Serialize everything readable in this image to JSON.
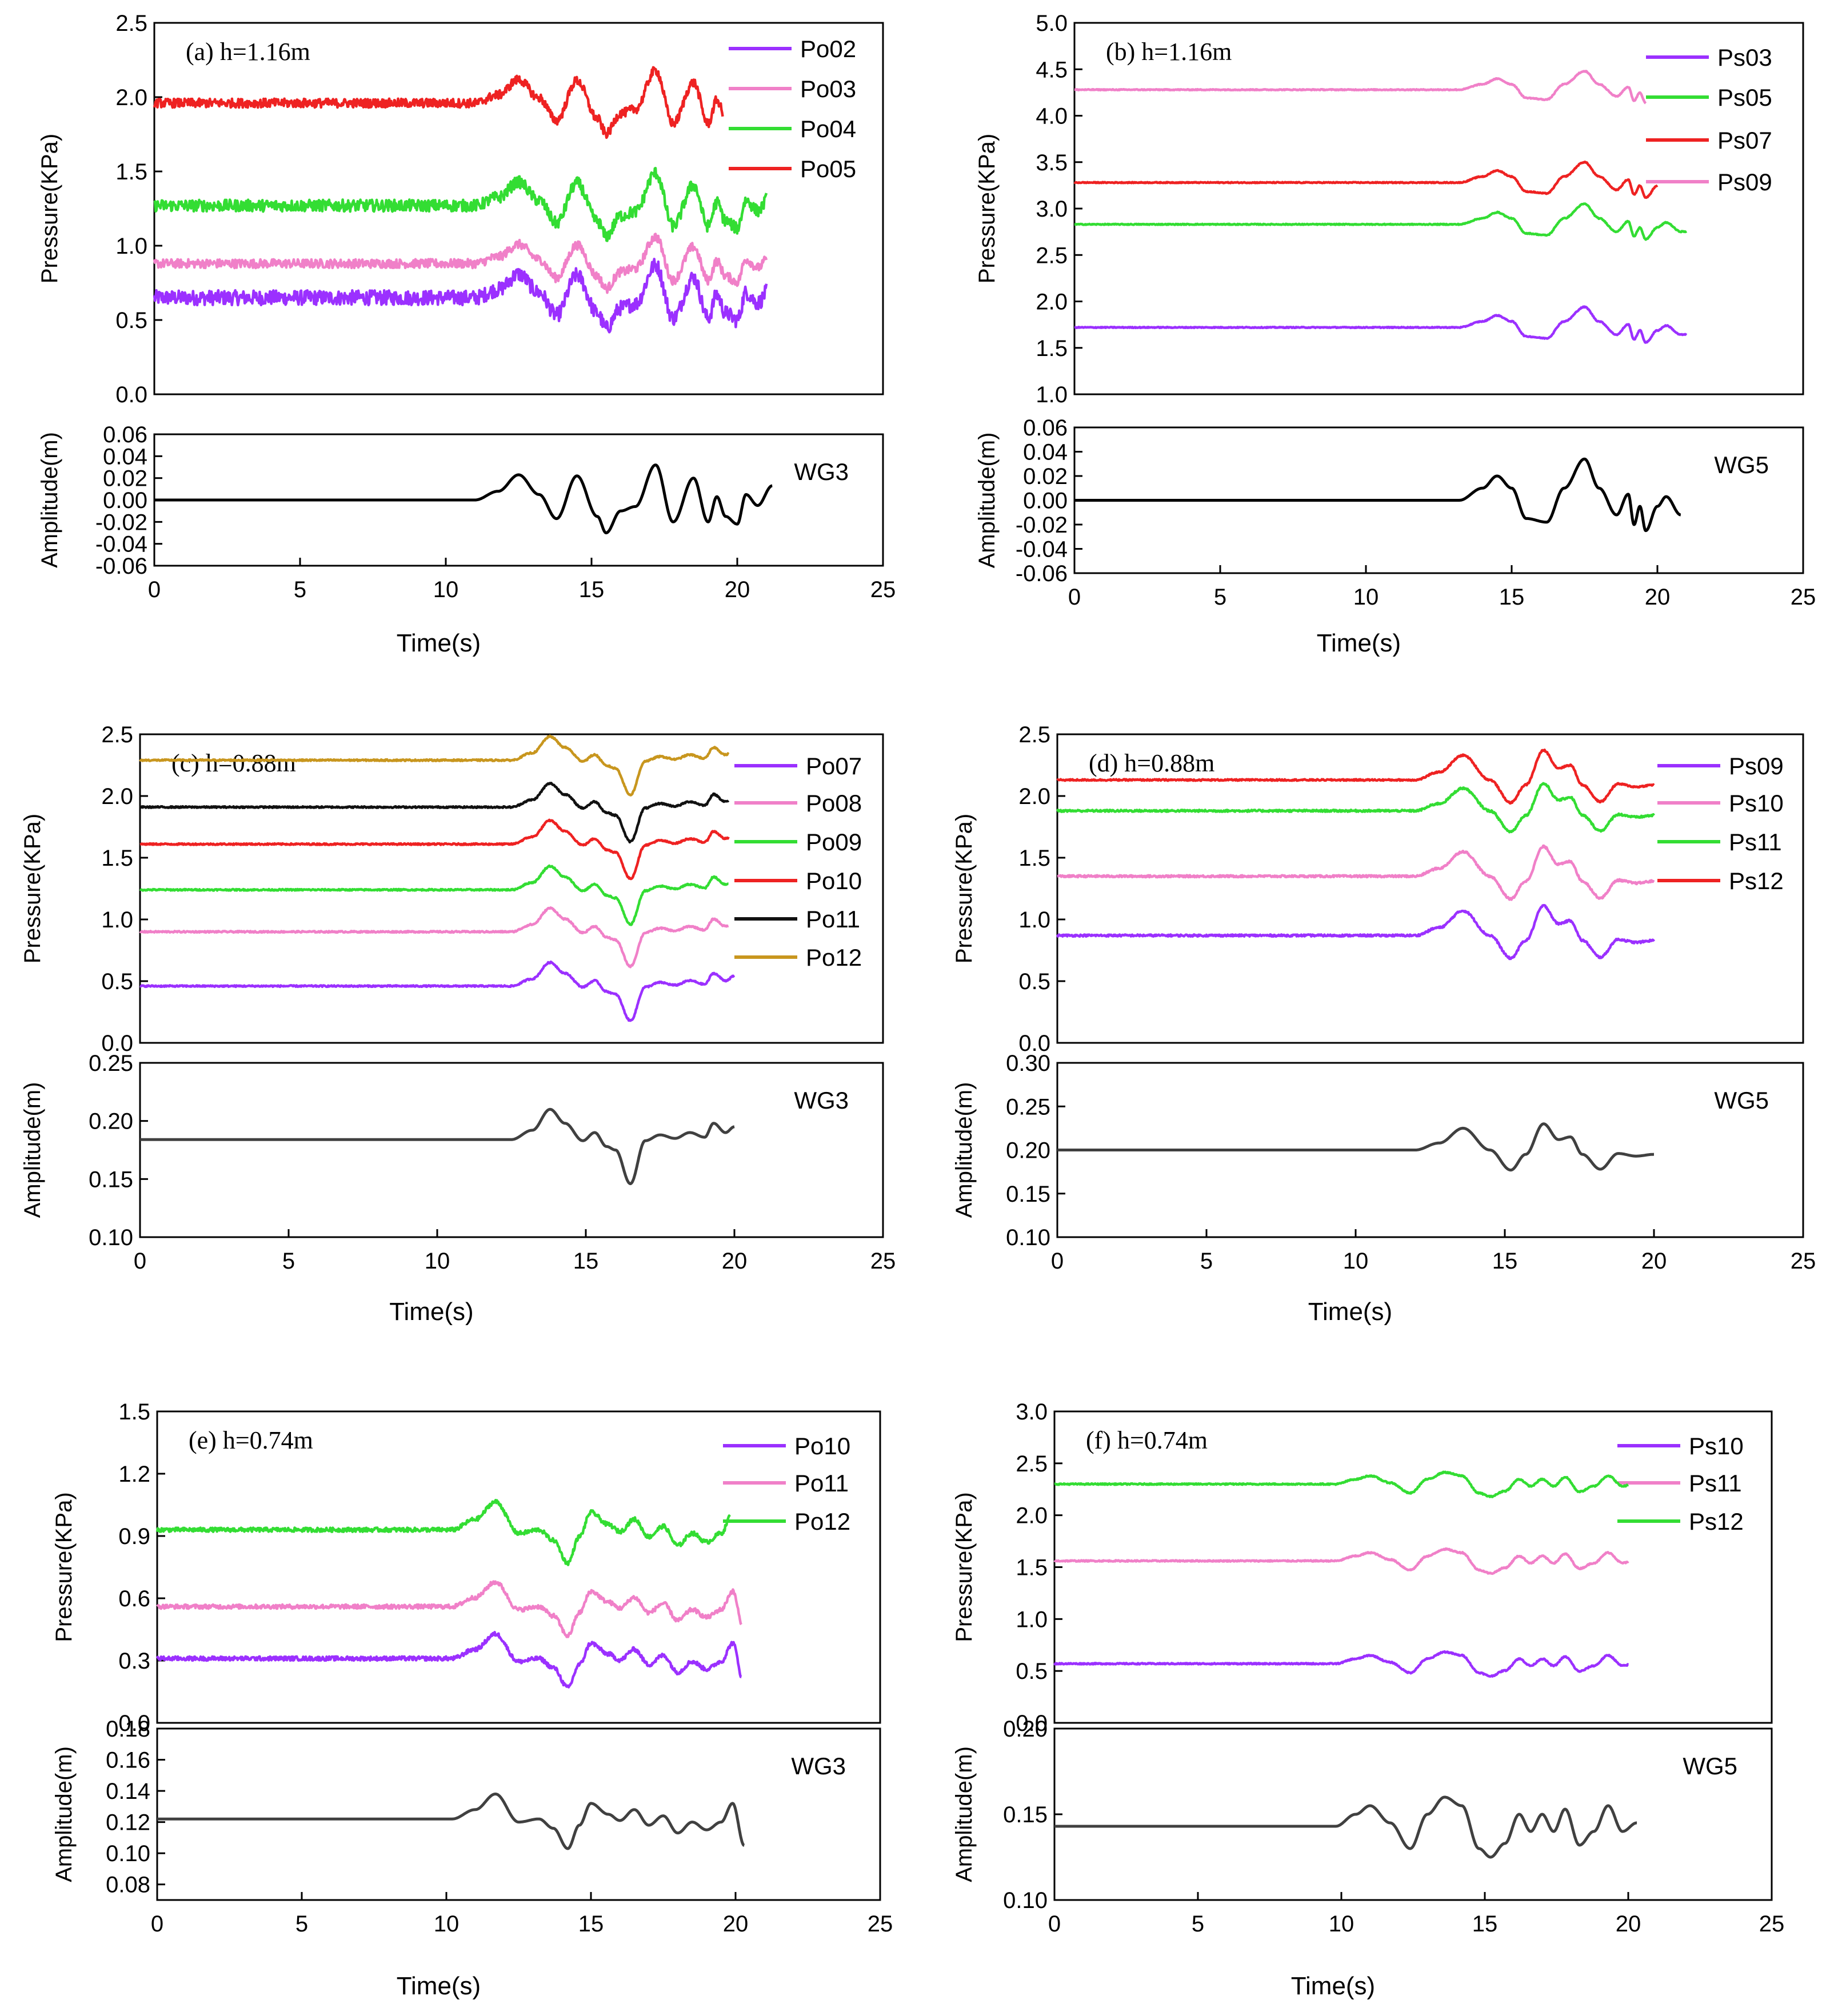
{
  "figure": {
    "time_label": "Time(s)",
    "pressure_label": "Pressure(KPa)",
    "amplitude_label": "Amplitude(m)"
  },
  "chart_data": [
    {
      "id": "a",
      "panel_label": "(a) h=1.16m",
      "type": "line",
      "pressure": {
        "ylim": [
          0,
          2.5
        ],
        "yticks": [
          "0.0",
          "0.5",
          "1.0",
          "1.5",
          "2.0",
          "2.5"
        ],
        "series": [
          {
            "name": "Po02",
            "color": "#9b30ff",
            "base": 0.65,
            "start": 11.5,
            "end": 21.0,
            "amp": 0.22,
            "noise": 0.05
          },
          {
            "name": "Po03",
            "color": "#f080c8",
            "base": 0.88,
            "start": 11.5,
            "end": 21.0,
            "amp": 0.18,
            "noise": 0.03
          },
          {
            "name": "Po04",
            "color": "#33dd33",
            "base": 1.27,
            "start": 11.5,
            "end": 21.0,
            "amp": 0.22,
            "noise": 0.04
          },
          {
            "name": "Po05",
            "color": "#ee2222",
            "base": 1.96,
            "start": 11.5,
            "end": 19.5,
            "amp": 0.22,
            "noise": 0.03
          }
        ]
      },
      "wave": {
        "name": "WG3",
        "color": "#000000",
        "ylim": [
          -0.06,
          0.06
        ],
        "yticks": [
          "-0.06",
          "-0.04",
          "-0.02",
          "0.00",
          "0.02",
          "0.04",
          "0.06"
        ],
        "x": [
          0,
          11.0,
          11.8,
          12.5,
          13.2,
          13.8,
          14.5,
          15.2,
          15.5,
          16.0,
          16.5,
          17.2,
          17.8,
          18.5,
          19.0,
          19.3,
          19.6,
          20.0,
          20.3,
          20.7,
          21.2
        ],
        "y": [
          0,
          0,
          0.008,
          0.023,
          0.005,
          -0.017,
          0.022,
          -0.015,
          -0.03,
          -0.01,
          -0.006,
          0.032,
          -0.02,
          0.02,
          -0.02,
          0.003,
          -0.015,
          -0.022,
          0.005,
          -0.005,
          0.013
        ]
      },
      "xlim": [
        0,
        25
      ],
      "xticks": [
        "0",
        "5",
        "10",
        "15",
        "20",
        "25"
      ]
    },
    {
      "id": "b",
      "panel_label": "(b) h=1.16m",
      "type": "line",
      "pressure": {
        "ylim": [
          1.0,
          5.0
        ],
        "yticks": [
          "1.0",
          "1.5",
          "2.0",
          "2.5",
          "3.0",
          "3.5",
          "4.0",
          "4.5",
          "5.0"
        ],
        "series": [
          {
            "name": "Ps03",
            "color": "#9b30ff",
            "base": 1.72,
            "start": 13.5,
            "end": 21.0,
            "amp": 0.22,
            "noise": 0.005
          },
          {
            "name": "Ps05",
            "color": "#33dd33",
            "base": 2.83,
            "start": 13.5,
            "end": 21.0,
            "amp": 0.22,
            "noise": 0.005
          },
          {
            "name": "Ps07",
            "color": "#ee2222",
            "base": 3.28,
            "start": 13.5,
            "end": 20.0,
            "amp": 0.22,
            "noise": 0.005
          },
          {
            "name": "Ps09",
            "color": "#f080c8",
            "base": 4.28,
            "start": 13.5,
            "end": 19.6,
            "amp": 0.2,
            "noise": 0.005
          }
        ]
      },
      "wave": {
        "name": "WG5",
        "color": "#000000",
        "ylim": [
          -0.06,
          0.06
        ],
        "yticks": [
          "-0.06",
          "-0.04",
          "-0.02",
          "0.00",
          "0.02",
          "0.04",
          "0.06"
        ],
        "x": [
          0,
          13.2,
          14.0,
          14.5,
          15.0,
          15.5,
          16.2,
          16.8,
          17.5,
          18.0,
          18.6,
          19.0,
          19.2,
          19.4,
          19.6,
          20.0,
          20.3,
          20.8
        ],
        "y": [
          0,
          0,
          0.01,
          0.02,
          0.01,
          -0.015,
          -0.018,
          0.01,
          0.034,
          0.01,
          -0.012,
          0.005,
          -0.02,
          -0.005,
          -0.025,
          -0.005,
          0.003,
          -0.012
        ]
      },
      "xlim": [
        0,
        25
      ],
      "xticks": [
        "0",
        "5",
        "10",
        "15",
        "20",
        "25"
      ]
    },
    {
      "id": "c",
      "panel_label": "(c) h=0.88m",
      "type": "line",
      "pressure": {
        "ylim": [
          0,
          2.5
        ],
        "yticks": [
          "0.0",
          "0.5",
          "1.0",
          "1.5",
          "2.0",
          "2.5"
        ],
        "series": [
          {
            "name": "Po07",
            "color": "#9b30ff",
            "base": 0.46,
            "start": 12.5,
            "end": 20.0,
            "amp": 0.28,
            "noise": 0.006
          },
          {
            "name": "Po08",
            "color": "#f080c8",
            "base": 0.9,
            "start": 12.5,
            "end": 19.8,
            "amp": 0.28,
            "noise": 0.006
          },
          {
            "name": "Po09",
            "color": "#33dd33",
            "base": 1.24,
            "start": 12.5,
            "end": 19.8,
            "amp": 0.28,
            "noise": 0.006
          },
          {
            "name": "Po10",
            "color": "#ee2222",
            "base": 1.61,
            "start": 12.5,
            "end": 19.8,
            "amp": 0.28,
            "noise": 0.006
          },
          {
            "name": "Po11",
            "color": "#111111",
            "base": 1.91,
            "start": 12.5,
            "end": 19.8,
            "amp": 0.28,
            "noise": 0.006
          },
          {
            "name": "Po12",
            "color": "#c8961e",
            "base": 2.29,
            "start": 12.5,
            "end": 19.8,
            "amp": 0.28,
            "noise": 0.006
          }
        ]
      },
      "wave": {
        "name": "WG3",
        "color": "#404040",
        "ylim": [
          0.1,
          0.25
        ],
        "yticks": [
          "0.10",
          "0.15",
          "0.20",
          "0.25"
        ],
        "x": [
          0,
          12.5,
          13.2,
          13.8,
          14.3,
          14.9,
          15.3,
          15.7,
          16.0,
          16.5,
          17.0,
          17.5,
          18.0,
          18.5,
          19.0,
          19.3,
          19.7,
          20.0
        ],
        "y": [
          0.184,
          0.184,
          0.192,
          0.21,
          0.198,
          0.183,
          0.19,
          0.178,
          0.175,
          0.146,
          0.183,
          0.188,
          0.185,
          0.19,
          0.186,
          0.198,
          0.19,
          0.195
        ]
      },
      "xlim": [
        0,
        25
      ],
      "xticks": [
        "0",
        "5",
        "10",
        "15",
        "20",
        "25"
      ]
    },
    {
      "id": "d",
      "panel_label": "(d) h=0.88m",
      "type": "line",
      "pressure": {
        "ylim": [
          0,
          2.5
        ],
        "yticks": [
          "0.0",
          "0.5",
          "1.0",
          "1.5",
          "2.0",
          "2.5"
        ],
        "series": [
          {
            "name": "Ps09",
            "color": "#9b30ff",
            "base": 0.87,
            "start": 12.0,
            "end": 20.0,
            "amp": 0.24,
            "noise": 0.008
          },
          {
            "name": "Ps10",
            "color": "#f080c8",
            "base": 1.35,
            "start": 12.0,
            "end": 20.0,
            "amp": 0.24,
            "noise": 0.008
          },
          {
            "name": "Ps11",
            "color": "#33dd33",
            "base": 1.88,
            "start": 12.0,
            "end": 20.0,
            "amp": 0.22,
            "noise": 0.008
          },
          {
            "name": "Ps12",
            "color": "#ee2222",
            "base": 2.13,
            "start": 12.0,
            "end": 20.0,
            "amp": 0.24,
            "noise": 0.006
          }
        ]
      },
      "wave": {
        "name": "WG5",
        "color": "#404040",
        "ylim": [
          0.1,
          0.3
        ],
        "yticks": [
          "0.10",
          "0.15",
          "0.20",
          "0.25",
          "0.30"
        ],
        "x": [
          0,
          12.0,
          12.8,
          13.6,
          14.5,
          15.2,
          15.7,
          16.3,
          16.8,
          17.2,
          17.6,
          18.2,
          18.8,
          19.4,
          20.0
        ],
        "y": [
          0.2,
          0.2,
          0.208,
          0.225,
          0.2,
          0.177,
          0.195,
          0.23,
          0.212,
          0.215,
          0.195,
          0.178,
          0.196,
          0.193,
          0.195
        ]
      },
      "xlim": [
        0,
        25
      ],
      "xticks": [
        "0",
        "5",
        "10",
        "15",
        "20",
        "25"
      ]
    },
    {
      "id": "e",
      "panel_label": "(e) h=0.74m",
      "type": "line",
      "pressure": {
        "ylim": [
          0,
          1.5
        ],
        "yticks": [
          "0.0",
          "0.3",
          "0.6",
          "0.9",
          "1.2",
          "1.5"
        ],
        "series": [
          {
            "name": "Po10",
            "color": "#9b30ff",
            "base": 0.31,
            "start": 10.5,
            "end": 20.2,
            "amp": 0.14,
            "noise": 0.01
          },
          {
            "name": "Po11",
            "color": "#f080c8",
            "base": 0.56,
            "start": 10.5,
            "end": 20.2,
            "amp": 0.14,
            "noise": 0.01
          },
          {
            "name": "Po12",
            "color": "#33dd33",
            "base": 0.93,
            "start": 10.5,
            "end": 19.8,
            "amp": 0.16,
            "noise": 0.01
          }
        ]
      },
      "wave": {
        "name": "WG3",
        "color": "#404040",
        "ylim": [
          0.07,
          0.18
        ],
        "yticks": [
          "0.08",
          "0.10",
          "0.12",
          "0.14",
          "0.16",
          "0.18"
        ],
        "x": [
          0,
          10.2,
          11.0,
          11.7,
          12.5,
          13.2,
          13.7,
          14.2,
          14.6,
          15.0,
          15.6,
          16.0,
          16.5,
          17.0,
          17.5,
          18.0,
          18.5,
          19.0,
          19.5,
          19.9,
          20.3
        ],
        "y": [
          0.122,
          0.122,
          0.128,
          0.138,
          0.12,
          0.122,
          0.116,
          0.103,
          0.118,
          0.132,
          0.125,
          0.121,
          0.128,
          0.118,
          0.124,
          0.113,
          0.12,
          0.115,
          0.12,
          0.132,
          0.105
        ]
      },
      "xlim": [
        0,
        25
      ],
      "xticks": [
        "0",
        "5",
        "10",
        "15",
        "20",
        "25"
      ]
    },
    {
      "id": "f",
      "panel_label": "(f) h=0.74m",
      "type": "line",
      "pressure": {
        "ylim": [
          0,
          3.0
        ],
        "yticks": [
          "0.0",
          "0.5",
          "1.0",
          "1.5",
          "2.0",
          "2.5",
          "3.0"
        ],
        "series": [
          {
            "name": "Ps10",
            "color": "#9b30ff",
            "base": 0.57,
            "start": 10.0,
            "end": 20.0,
            "amp": 0.12,
            "noise": 0.006
          },
          {
            "name": "Ps11",
            "color": "#f080c8",
            "base": 1.56,
            "start": 10.0,
            "end": 20.0,
            "amp": 0.12,
            "noise": 0.006
          },
          {
            "name": "Ps12",
            "color": "#33dd33",
            "base": 2.3,
            "start": 10.0,
            "end": 20.0,
            "amp": 0.12,
            "noise": 0.006
          }
        ]
      },
      "wave": {
        "name": "WG5",
        "color": "#404040",
        "ylim": [
          0.1,
          0.2
        ],
        "yticks": [
          "0.10",
          "0.15",
          "0.20"
        ],
        "x": [
          0,
          9.8,
          10.5,
          11.0,
          11.7,
          12.4,
          13.0,
          13.6,
          14.2,
          14.8,
          15.2,
          15.7,
          16.2,
          16.6,
          17.0,
          17.4,
          17.8,
          18.3,
          18.8,
          19.3,
          19.8,
          20.3
        ],
        "y": [
          0.143,
          0.143,
          0.15,
          0.155,
          0.145,
          0.13,
          0.15,
          0.16,
          0.155,
          0.13,
          0.125,
          0.133,
          0.15,
          0.14,
          0.15,
          0.14,
          0.153,
          0.132,
          0.14,
          0.155,
          0.14,
          0.145
        ]
      },
      "xlim": [
        0,
        25
      ],
      "xticks": [
        "0",
        "5",
        "10",
        "15",
        "20",
        "25"
      ]
    }
  ]
}
